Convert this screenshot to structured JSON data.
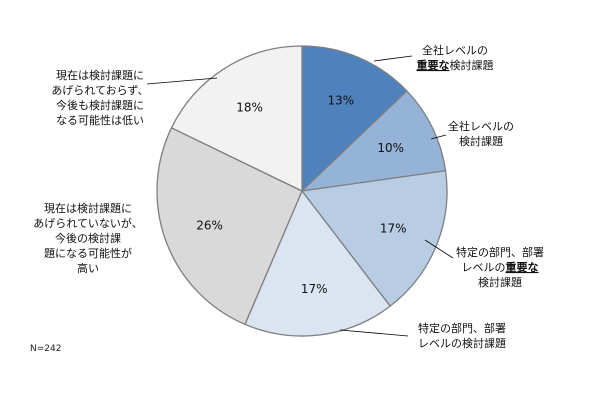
{
  "chart_data": {
    "type": "pie",
    "title": "",
    "slices": [
      {
        "label_lines": [
          [
            "全社レベルの"
          ],
          [
            "重要な|b",
            "検討課題"
          ]
        ],
        "value": 13,
        "value_label": "13%",
        "color": "#4f81bd"
      },
      {
        "label_lines": [
          [
            "全社レベルの"
          ],
          [
            "検討課題"
          ]
        ],
        "value": 10,
        "value_label": "10%",
        "color": "#95b3d7"
      },
      {
        "label_lines": [
          [
            "特定の部門、部署"
          ],
          [
            "レベルの",
            "重要な|b"
          ],
          [
            "検討課題"
          ]
        ],
        "value": 17,
        "value_label": "17%",
        "color": "#b8cce4"
      },
      {
        "label_lines": [
          [
            "特定の部門、部署"
          ],
          [
            "レベルの検討課題"
          ]
        ],
        "value": 17,
        "value_label": "17%",
        "color": "#dbe5f1"
      },
      {
        "label_lines": [
          [
            "現在は検討課題に"
          ],
          [
            "あげられていないが、"
          ],
          [
            "今後の検討課"
          ],
          [
            "題になる可能性が"
          ],
          [
            "高い"
          ]
        ],
        "value": 26,
        "value_label": "26%",
        "color": "#d9d9d9"
      },
      {
        "label_lines": [
          [
            "現在は検討課題に"
          ],
          [
            "あげられておらず、"
          ],
          [
            "今後も検討課題に"
          ],
          [
            "なる可能性は低い"
          ]
        ],
        "value": 18,
        "value_label": "18%",
        "color": "#f2f2f2"
      }
    ],
    "legend": "none",
    "note": "N=242"
  }
}
